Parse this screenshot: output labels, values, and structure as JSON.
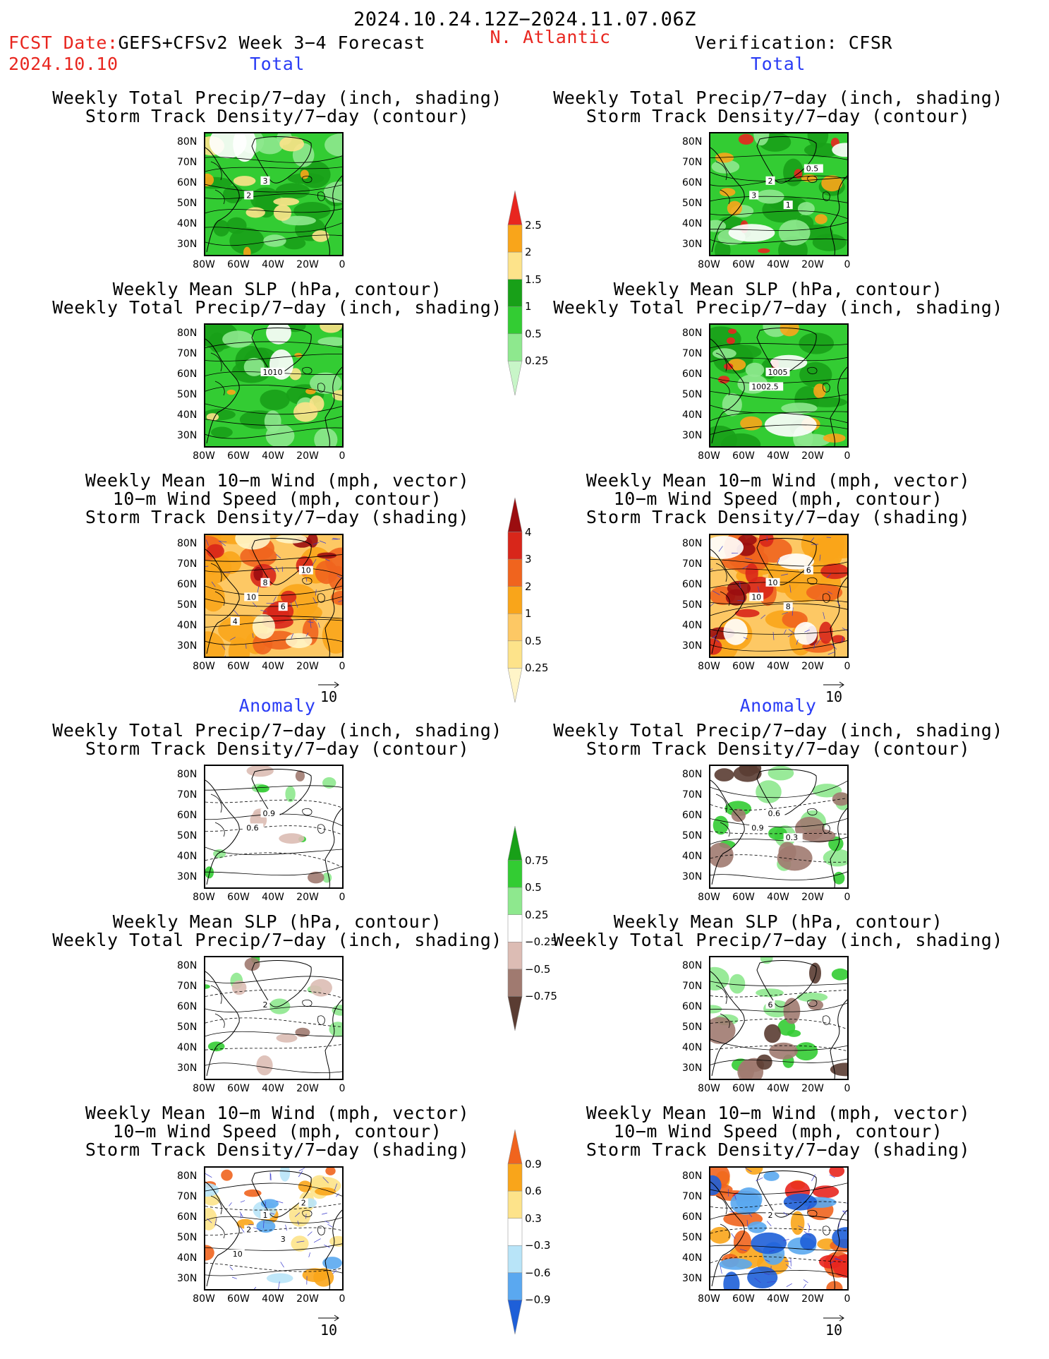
{
  "header": {
    "date_range": "2024.10.24.12Z−2024.11.07.06Z",
    "fcst_date_label": "FCST Date:",
    "fcst_title": "GEFS+CFSv2 Week 3−4 Forecast",
    "fcst_date": "2024.10.10",
    "region": "N. Atlantic",
    "verification": "Verification: CFSR"
  },
  "sections": {
    "total": "Total",
    "anomaly": "Anomaly"
  },
  "titles": {
    "precip_storm": [
      "Weekly Total Precip/7−day (inch, shading)",
      "Storm Track Density/7−day (contour)"
    ],
    "slp_precip": [
      "Weekly Mean SLP (hPa, contour)",
      "Weekly Total Precip/7−day (inch, shading)"
    ],
    "wind_storm": [
      "Weekly Mean 10−m Wind (mph, vector)",
      "10−m Wind Speed (mph, contour)",
      "Storm Track Density/7−day (shading)"
    ]
  },
  "axes": {
    "lat_labels": [
      "80N",
      "70N",
      "60N",
      "50N",
      "40N",
      "30N"
    ],
    "lon_labels": [
      "80W",
      "60W",
      "40W",
      "20W",
      "0"
    ]
  },
  "vector_ref": "10",
  "contour_labels": {
    "fc_total_precip": [
      "3",
      "2"
    ],
    "ver_total_precip": [
      "2",
      "3",
      "1",
      "0.5"
    ],
    "fc_total_slp": [
      "1010"
    ],
    "ver_total_slp": [
      "1005",
      "1002.5"
    ],
    "fc_total_wind": [
      "8",
      "10",
      "6",
      "10",
      "4"
    ],
    "ver_total_wind": [
      "10",
      "10",
      "8",
      "6"
    ],
    "fc_anom_precip": [
      "0.9",
      "0.6"
    ],
    "ver_anom_precip": [
      "0.6",
      "0.9",
      "0.3"
    ],
    "fc_anom_slp": [
      "2"
    ],
    "ver_anom_slp": [
      "6"
    ],
    "fc_anom_wind": [
      "1",
      "2",
      "3",
      "2",
      "10"
    ],
    "ver_anom_wind": [
      "2"
    ]
  },
  "colorbars": {
    "precip_total": {
      "labels": [
        "2.5",
        "2",
        "1.5",
        "1",
        "0.5",
        "0.25"
      ],
      "colors": [
        "#e8261f",
        "#f9a51a",
        "#fde38a",
        "#18a018",
        "#33cc33",
        "#8ee88e",
        "#c8f5c8"
      ]
    },
    "storm_total": {
      "labels": [
        "4",
        "3",
        "2",
        "1",
        "0.5",
        "0.25"
      ],
      "colors": [
        "#9b0d10",
        "#d8261a",
        "#f0641e",
        "#f9a51a",
        "#fdc864",
        "#fde38a",
        "#fff5c8"
      ]
    },
    "precip_anom": {
      "labels": [
        "0.75",
        "0.5",
        "0.25",
        "−0.25",
        "−0.5",
        "−0.75"
      ],
      "colors": [
        "#18a018",
        "#33cc33",
        "#8ee88e",
        "#ffffff",
        "#dcbcb4",
        "#a07a70",
        "#5a3c32"
      ]
    },
    "storm_anom": {
      "labels": [
        "0.9",
        "0.6",
        "0.3",
        "−0.3",
        "−0.6",
        "−0.9"
      ],
      "colors": [
        "#f0641e",
        "#f9a51a",
        "#fde38a",
        "#ffffff",
        "#b8e4f8",
        "#5aa8f0",
        "#1e5fd8"
      ]
    }
  }
}
